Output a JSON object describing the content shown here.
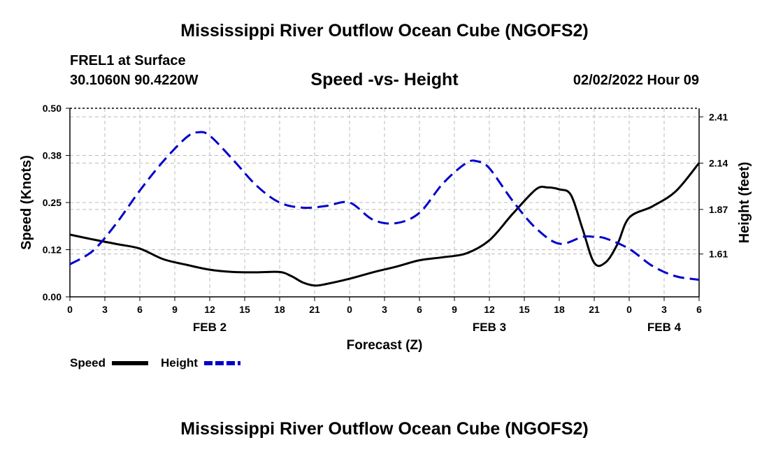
{
  "header": {
    "main_title": "Mississippi River Outflow Ocean Cube (NGOFS2)",
    "station": "FREL1 at Surface",
    "coords": "30.1060N  90.4220W",
    "subtitle": "Speed -vs- Height",
    "datetime": "02/02/2022 Hour 09",
    "bottom_title": "Mississippi River Outflow Ocean Cube (NGOFS2)"
  },
  "chart_data": {
    "type": "line",
    "title": "Speed -vs- Height",
    "xlabel": "Forecast (Z)",
    "ylabel": "Speed (Knots)",
    "y2label": "Height (feet)",
    "xlim": [
      0,
      54
    ],
    "ylim": [
      0,
      0.5
    ],
    "y2lim": [
      1.36,
      2.46
    ],
    "x_tick_values": [
      0,
      3,
      6,
      9,
      12,
      15,
      18,
      21,
      24,
      27,
      30,
      33,
      36,
      39,
      42,
      45,
      48,
      51,
      54
    ],
    "x_tick_labels": [
      "0",
      "3",
      "6",
      "9",
      "12",
      "15",
      "18",
      "21",
      "0",
      "3",
      "6",
      "9",
      "12",
      "15",
      "18",
      "21",
      "0",
      "3",
      "6"
    ],
    "date_labels": [
      {
        "label": "FEB 2",
        "x": 12
      },
      {
        "label": "FEB 3",
        "x": 36
      },
      {
        "label": "FEB 4",
        "x": 51
      }
    ],
    "y_ticks": [
      0,
      0.125,
      0.25,
      0.375,
      0.5
    ],
    "y_tick_labels": [
      "0.00",
      "0.12",
      "0.25",
      "0.38",
      "0.50"
    ],
    "y2_ticks": [
      1.61,
      1.87,
      2.14,
      2.41
    ],
    "y2_tick_labels": [
      "1.61",
      "1.87",
      "2.14",
      "2.41"
    ],
    "grid": true,
    "series": [
      {
        "name": "Speed",
        "axis": "left",
        "color": "#000000",
        "dash": "solid",
        "x": [
          0,
          2,
          4,
          6,
          8,
          10,
          12,
          14,
          16,
          18,
          19,
          20,
          21,
          22,
          24,
          26,
          28,
          30,
          32,
          34,
          36,
          38,
          40,
          41,
          42,
          43,
          44,
          45,
          46,
          47,
          48,
          50,
          52,
          54
        ],
        "values": [
          0.165,
          0.152,
          0.14,
          0.128,
          0.1,
          0.085,
          0.072,
          0.066,
          0.065,
          0.066,
          0.055,
          0.038,
          0.03,
          0.034,
          0.048,
          0.065,
          0.08,
          0.097,
          0.105,
          0.115,
          0.15,
          0.22,
          0.285,
          0.29,
          0.285,
          0.27,
          0.18,
          0.09,
          0.092,
          0.14,
          0.21,
          0.24,
          0.28,
          0.355
        ]
      },
      {
        "name": "Height",
        "axis": "right",
        "color": "#0000cc",
        "dash": "dashed",
        "x": [
          0,
          2,
          4,
          6,
          8,
          10,
          11,
          12,
          14,
          16,
          18,
          20,
          22,
          24,
          26,
          28,
          30,
          32,
          34,
          35,
          36,
          38,
          40,
          42,
          44,
          45,
          46,
          48,
          50,
          52,
          54
        ],
        "values": [
          1.55,
          1.63,
          1.79,
          1.98,
          2.15,
          2.29,
          2.32,
          2.3,
          2.16,
          2.01,
          1.91,
          1.88,
          1.89,
          1.91,
          1.81,
          1.79,
          1.85,
          2.02,
          2.14,
          2.15,
          2.11,
          1.92,
          1.76,
          1.67,
          1.71,
          1.71,
          1.7,
          1.64,
          1.54,
          1.48,
          1.46
        ]
      }
    ],
    "legend": [
      {
        "label": "Speed",
        "color": "#000000",
        "dash": "solid"
      },
      {
        "label": "Height",
        "color": "#0000cc",
        "dash": "dashed"
      }
    ]
  }
}
